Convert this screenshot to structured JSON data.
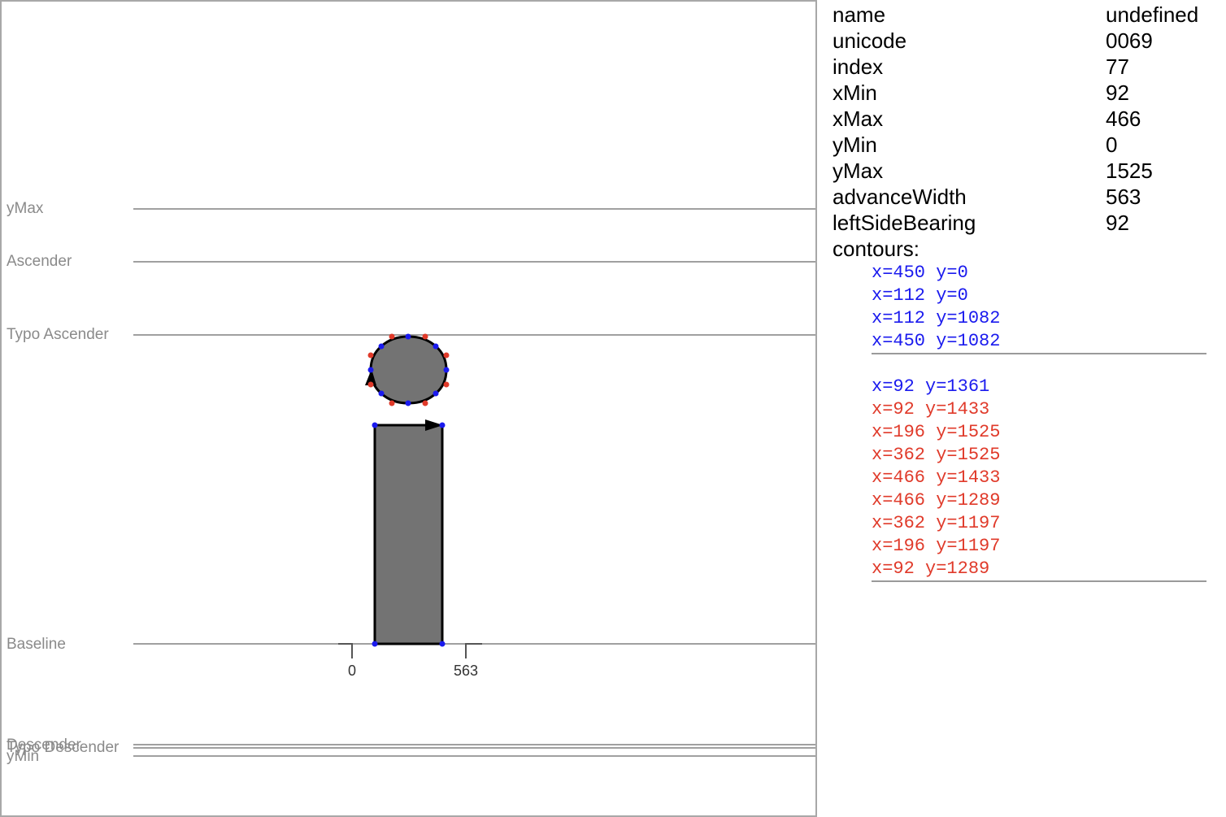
{
  "glyph_canvas": {
    "metrics": [
      {
        "label": "yMax"
      },
      {
        "label": "Ascender"
      },
      {
        "label": "Typo Ascender"
      },
      {
        "label": "Baseline"
      },
      {
        "label": "Descender"
      },
      {
        "label": "Typo Descender"
      },
      {
        "label": "yMin"
      }
    ],
    "advance_ticks": [
      {
        "label": "0"
      },
      {
        "label": "563"
      }
    ],
    "colors": {
      "guide_line": "#a0a0a0",
      "glyph_fill": "#737373",
      "on_curve_point": "#1a1aee",
      "off_curve_point": "#e03a2a"
    }
  },
  "glyph_info": {
    "rows": [
      {
        "key": "name",
        "value": "undefined"
      },
      {
        "key": "unicode",
        "value": "0069"
      },
      {
        "key": "index",
        "value": "77"
      },
      {
        "key": "xMin",
        "value": "92"
      },
      {
        "key": "xMax",
        "value": "466"
      },
      {
        "key": "yMin",
        "value": "0"
      },
      {
        "key": "yMax",
        "value": "1525"
      },
      {
        "key": "advanceWidth",
        "value": "563"
      },
      {
        "key": "leftSideBearing",
        "value": "92"
      }
    ],
    "contours_label": "contours:",
    "contours": [
      [
        {
          "text": "x=450 y=0",
          "on_curve": true
        },
        {
          "text": "x=112 y=0",
          "on_curve": true
        },
        {
          "text": "x=112 y=1082",
          "on_curve": true
        },
        {
          "text": "x=450 y=1082",
          "on_curve": true
        }
      ],
      [
        {
          "text": "x=92 y=1361",
          "on_curve": true
        },
        {
          "text": "x=92 y=1433",
          "on_curve": false
        },
        {
          "text": "x=196 y=1525",
          "on_curve": false
        },
        {
          "text": "x=362 y=1525",
          "on_curve": false
        },
        {
          "text": "x=466 y=1433",
          "on_curve": false
        },
        {
          "text": "x=466 y=1289",
          "on_curve": false
        },
        {
          "text": "x=362 y=1197",
          "on_curve": false
        },
        {
          "text": "x=196 y=1197",
          "on_curve": false
        },
        {
          "text": "x=92 y=1289",
          "on_curve": false
        }
      ]
    ]
  }
}
